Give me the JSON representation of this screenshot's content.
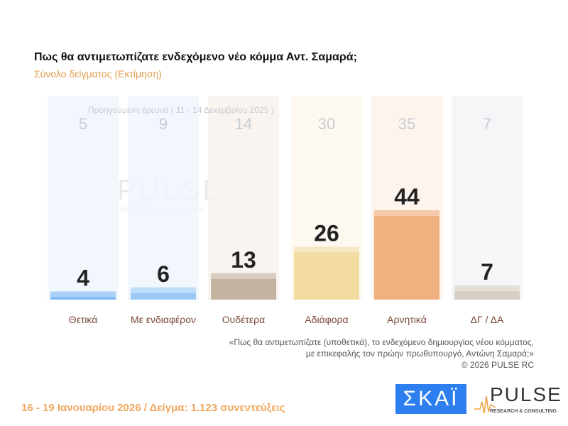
{
  "chart_data": {
    "type": "bar",
    "title": "Πως θα αντιμετωπίζατε ενδεχόμενο νέο κόμμα Αντ. Σαμαρά;",
    "subtitle": "Σύνολο δείγματος  (Εκτίμηση)",
    "categories": [
      "Θετικά",
      "Με ενδιαφέρον",
      "Ουδέτερα",
      "Αδιάφορα",
      "Αρνητικά",
      "ΔΓ / ΔΑ"
    ],
    "series": [
      {
        "name": "Προηγούμενη έρευνα ( 11 - 14 Δεκεμβρίου 2025 )",
        "values": [
          5,
          9,
          14,
          30,
          35,
          7
        ]
      },
      {
        "values": [
          4,
          6,
          13,
          26,
          44,
          7
        ]
      }
    ],
    "colors": [
      "#7ab8f0",
      "#9cc8f4",
      "#c4b3a0",
      "#f2dca0",
      "#f0b080",
      "#d8cfc4"
    ],
    "ylim": [
      0,
      50
    ]
  },
  "note": [
    "«Πως θα αντιμετωπίζατε (υποθετικά), το ενδεχόμενο δημιουργίας νέου κόμματος,",
    "με επικεφαλής τον πρώην πρωθυπουργό, Αντώνη Σαμαρά;»",
    "©  2026  PULSE RC"
  ],
  "footer": "16 - 19 Ιανουαρίου 2026  /  Δείγμα:  1.123 συνεντεύξεις",
  "logos": {
    "skai": "ΣΚΑΪ",
    "pulse": "PULSE",
    "pulse_sub": "RESEARCH & CONSULTING"
  }
}
